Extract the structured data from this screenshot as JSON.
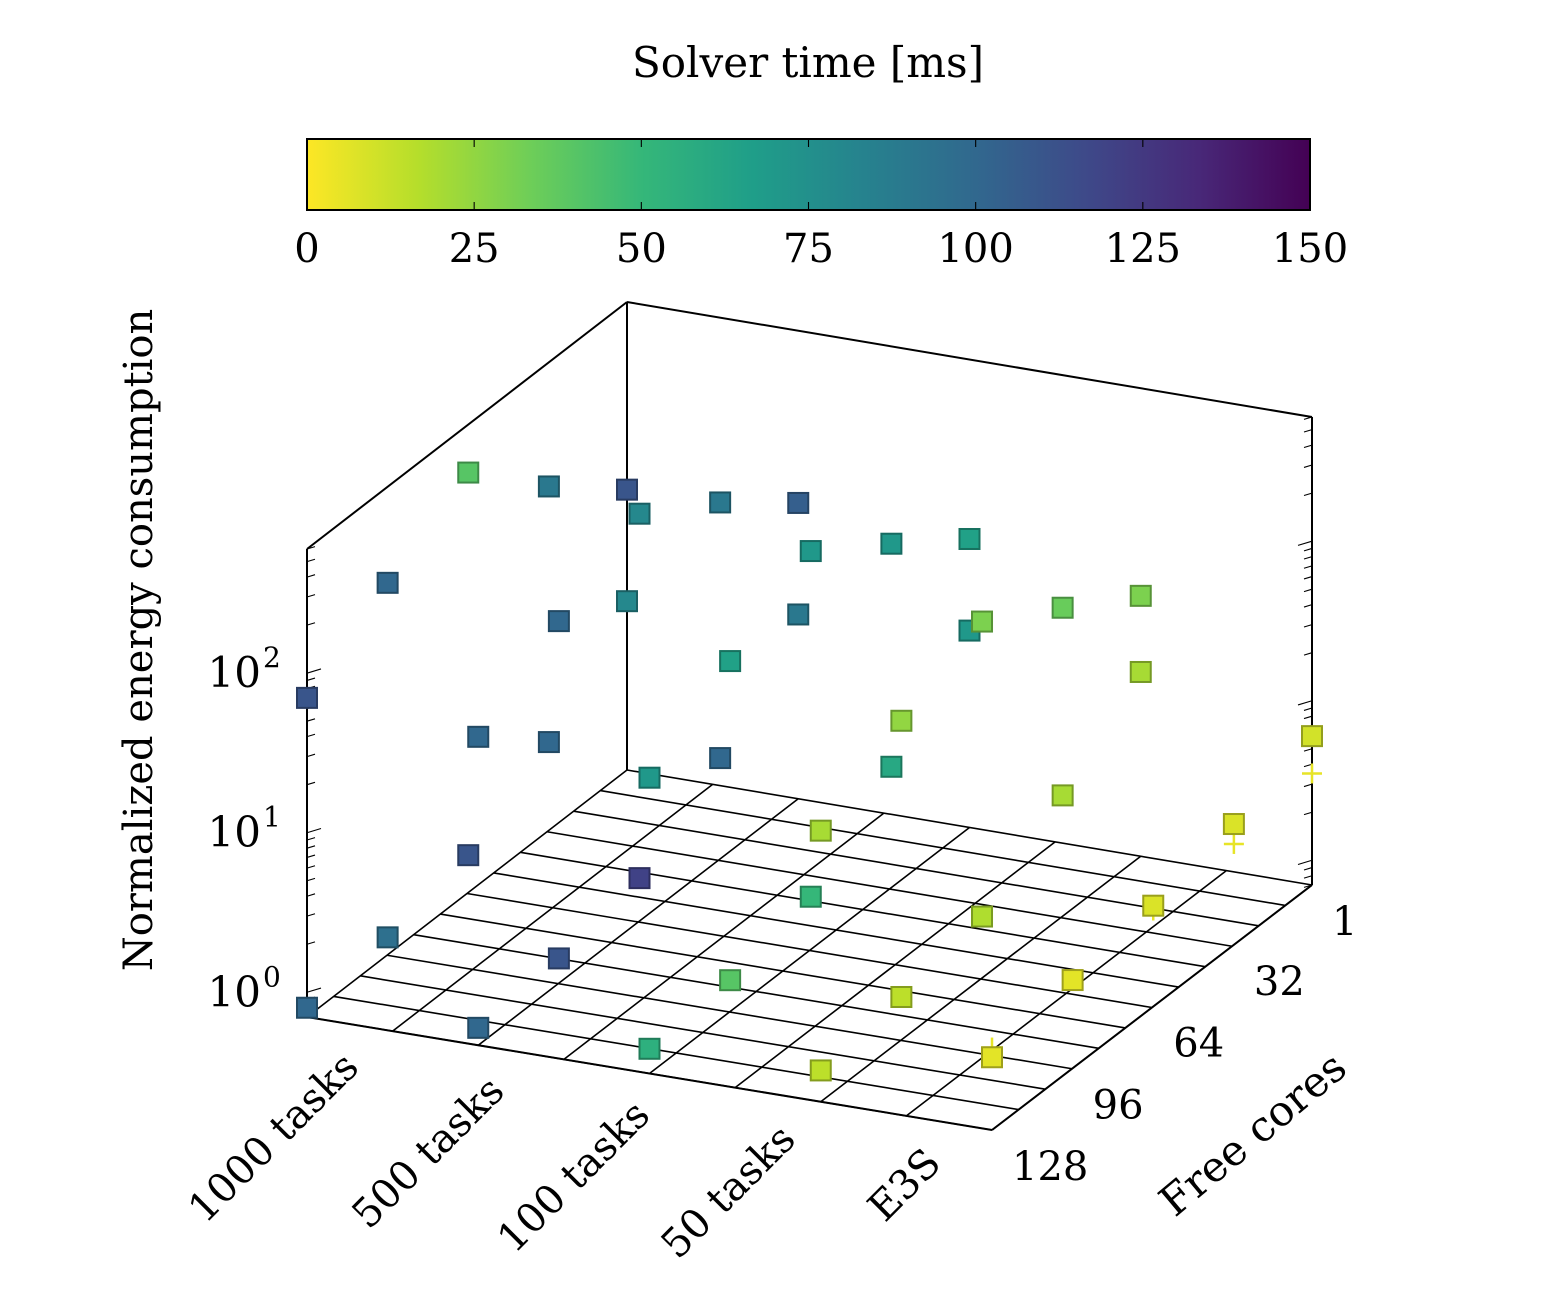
{
  "chart_data": {
    "type": "scatter3d",
    "colorbar": {
      "label": "Solver time [ms]",
      "min": 0,
      "max": 150,
      "ticks": [
        "0",
        "25",
        "50",
        "75",
        "100",
        "125",
        "150"
      ],
      "colormap": "viridis-reversed",
      "stops": [
        "#fde725",
        "#b5de2b",
        "#6ece58",
        "#35b779",
        "#1f9e89",
        "#26828e",
        "#31688e",
        "#3e4989",
        "#482878",
        "#440154"
      ]
    },
    "z_axis": {
      "label": "Normalized energy consumption",
      "scale": "log",
      "range": [
        0.7,
        600
      ],
      "tick_labels": [
        "10",
        "10",
        "10"
      ],
      "tick_exponents": [
        "0",
        "1",
        "2"
      ],
      "tick_values": [
        1,
        10,
        100
      ]
    },
    "x_axis": {
      "categories": [
        "1000 tasks",
        "500 tasks",
        "100 tasks",
        "50 tasks",
        "E3S"
      ]
    },
    "y_axis": {
      "label": "Free cores",
      "tick_labels": [
        "1",
        "32",
        "64",
        "96",
        "128"
      ],
      "tick_values": [
        1,
        32,
        64,
        96,
        128
      ],
      "range": [
        1,
        128
      ]
    },
    "grid": true,
    "series": [
      {
        "marker": "square",
        "points_description": "solver configurations",
        "points": [
          [
            0,
            1,
            8,
            80
          ],
          [
            0,
            32,
            2.5,
            100
          ],
          [
            0,
            64,
            1.2,
            110
          ],
          [
            0,
            96,
            0.9,
            95
          ],
          [
            0,
            128,
            0.8,
            100
          ],
          [
            0,
            1,
            40,
            110
          ],
          [
            0,
            32,
            100,
            90
          ],
          [
            0,
            64,
            300,
            40
          ],
          [
            0,
            96,
            150,
            100
          ],
          [
            0,
            128,
            70,
            110
          ],
          [
            1,
            1,
            10,
            90
          ],
          [
            1,
            32,
            3,
            100
          ],
          [
            1,
            64,
            1.3,
            120
          ],
          [
            1,
            96,
            1.0,
            110
          ],
          [
            1,
            128,
            0.9,
            100
          ],
          [
            1,
            1,
            50,
            105
          ],
          [
            1,
            32,
            120,
            90
          ],
          [
            1,
            64,
            250,
            80
          ],
          [
            1,
            96,
            130,
            100
          ],
          [
            1,
            128,
            60,
            100
          ],
          [
            2,
            1,
            12,
            70
          ],
          [
            2,
            32,
            4,
            60
          ],
          [
            2,
            64,
            1.5,
            50
          ],
          [
            2,
            96,
            1.1,
            40
          ],
          [
            2,
            128,
            1.0,
            55
          ],
          [
            2,
            1,
            45,
            65
          ],
          [
            2,
            32,
            100,
            70
          ],
          [
            2,
            64,
            220,
            70
          ],
          [
            2,
            96,
            110,
            65
          ],
          [
            2,
            128,
            50,
            70
          ],
          [
            3,
            1,
            10,
            20
          ],
          [
            3,
            32,
            4,
            20
          ],
          [
            3,
            64,
            1.7,
            18
          ],
          [
            3,
            96,
            1.3,
            15
          ],
          [
            3,
            128,
            1.1,
            15
          ],
          [
            3,
            1,
            30,
            30
          ],
          [
            3,
            32,
            60,
            35
          ],
          [
            3,
            64,
            120,
            30
          ],
          [
            3,
            96,
            70,
            25
          ],
          [
            3,
            128,
            35,
            20
          ],
          [
            4,
            1,
            6,
            10
          ],
          [
            4,
            32,
            4,
            8
          ],
          [
            4,
            64,
            3,
            8
          ],
          [
            4,
            96,
            2.5,
            6
          ],
          [
            4,
            128,
            2,
            6
          ]
        ]
      },
      {
        "marker": "plus",
        "points_description": "E3S reference",
        "points": [
          [
            4,
            1,
            3.5,
            5
          ],
          [
            4,
            32,
            3,
            5
          ],
          [
            4,
            64,
            2.8,
            5
          ],
          [
            4,
            96,
            2.5,
            5
          ],
          [
            4,
            128,
            2.3,
            5
          ]
        ]
      }
    ]
  }
}
